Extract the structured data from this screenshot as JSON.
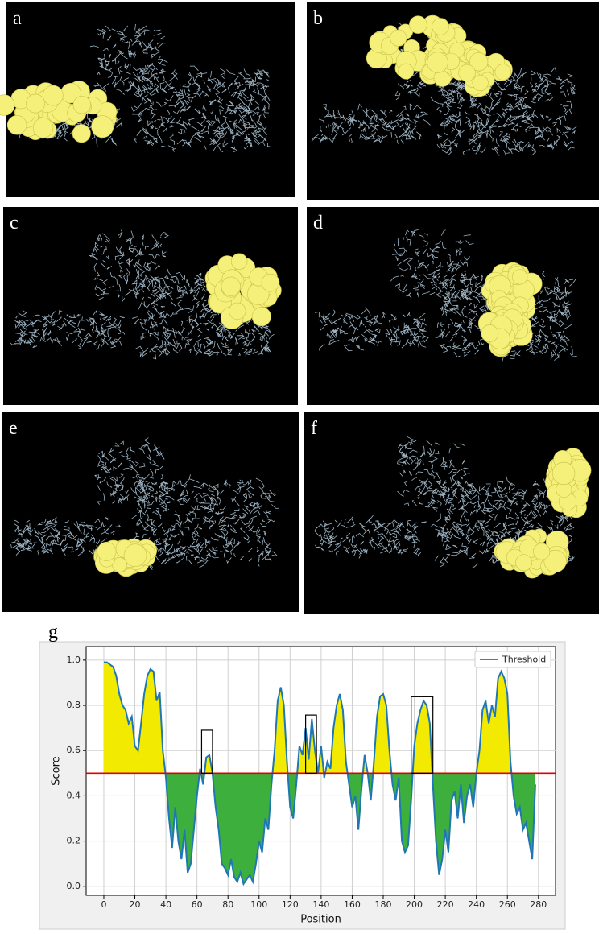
{
  "panels": [
    "a",
    "b",
    "c",
    "d",
    "e",
    "f"
  ],
  "chart_label": "g",
  "chart_data": {
    "type": "line",
    "xlabel": "Position",
    "ylabel": "Score",
    "x": [
      0,
      2,
      4,
      6,
      8,
      10,
      12,
      14,
      16,
      18,
      20,
      22,
      24,
      26,
      28,
      30,
      32,
      34,
      36,
      38,
      40,
      42,
      44,
      46,
      48,
      50,
      52,
      54,
      56,
      58,
      60,
      62,
      64,
      66,
      68,
      70,
      72,
      74,
      76,
      78,
      80,
      82,
      84,
      86,
      88,
      90,
      92,
      94,
      96,
      98,
      100,
      102,
      104,
      106,
      108,
      110,
      112,
      114,
      116,
      118,
      120,
      122,
      124,
      126,
      128,
      130,
      132,
      134,
      136,
      138,
      140,
      142,
      144,
      146,
      148,
      150,
      152,
      154,
      156,
      158,
      160,
      162,
      164,
      166,
      168,
      170,
      172,
      174,
      176,
      178,
      180,
      182,
      184,
      186,
      188,
      190,
      192,
      194,
      196,
      198,
      200,
      202,
      204,
      206,
      208,
      210,
      212,
      214,
      216,
      218,
      220,
      222,
      224,
      226,
      228,
      230,
      232,
      234,
      236,
      238,
      240,
      242,
      244,
      246,
      248,
      250,
      252,
      254,
      256,
      258,
      260,
      262,
      264,
      266,
      268,
      270,
      272,
      274,
      276,
      278
    ],
    "series": [
      {
        "name": "Score",
        "color": "#1f77b4",
        "values": [
          0.99,
          0.99,
          0.98,
          0.97,
          0.93,
          0.85,
          0.8,
          0.78,
          0.72,
          0.75,
          0.62,
          0.6,
          0.72,
          0.85,
          0.93,
          0.96,
          0.95,
          0.82,
          0.86,
          0.6,
          0.48,
          0.3,
          0.17,
          0.35,
          0.2,
          0.12,
          0.25,
          0.06,
          0.1,
          0.25,
          0.4,
          0.52,
          0.45,
          0.57,
          0.58,
          0.5,
          0.35,
          0.25,
          0.1,
          0.08,
          0.05,
          0.12,
          0.04,
          0.02,
          0.06,
          0.01,
          0.03,
          0.05,
          0.02,
          0.1,
          0.2,
          0.15,
          0.3,
          0.25,
          0.45,
          0.6,
          0.82,
          0.88,
          0.8,
          0.55,
          0.35,
          0.3,
          0.45,
          0.62,
          0.58,
          0.7,
          0.56,
          0.74,
          0.6,
          0.5,
          0.62,
          0.48,
          0.55,
          0.52,
          0.7,
          0.8,
          0.85,
          0.78,
          0.55,
          0.45,
          0.35,
          0.4,
          0.25,
          0.43,
          0.58,
          0.5,
          0.38,
          0.55,
          0.75,
          0.84,
          0.85,
          0.8,
          0.6,
          0.45,
          0.38,
          0.48,
          0.2,
          0.15,
          0.18,
          0.38,
          0.62,
          0.72,
          0.78,
          0.82,
          0.8,
          0.72,
          0.45,
          0.2,
          0.05,
          0.12,
          0.25,
          0.15,
          0.38,
          0.42,
          0.3,
          0.45,
          0.28,
          0.4,
          0.45,
          0.35,
          0.5,
          0.6,
          0.78,
          0.82,
          0.72,
          0.8,
          0.75,
          0.92,
          0.95,
          0.92,
          0.85,
          0.55,
          0.4,
          0.32,
          0.35,
          0.25,
          0.28,
          0.2,
          0.12,
          0.45
        ]
      }
    ],
    "threshold": {
      "name": "Threshold",
      "value": 0.5,
      "color": "#e00000"
    },
    "fill_above": "#f2ea00",
    "fill_below": "#3caf3c",
    "boxes": [
      {
        "x": [
          63,
          70
        ],
        "y": [
          0.5,
          0.69
        ]
      },
      {
        "x": [
          130,
          137
        ],
        "y": [
          0.5,
          0.757
        ]
      },
      {
        "x": [
          198,
          212
        ],
        "y": [
          0.5,
          0.838
        ]
      }
    ],
    "xlim": [
      -11.4,
      291
    ],
    "ylim": [
      -0.04,
      1.06
    ],
    "xticks": [
      0,
      20,
      40,
      60,
      80,
      100,
      120,
      140,
      160,
      180,
      200,
      220,
      240,
      260,
      280
    ],
    "yticks": [
      {
        "value": 0,
        "label": "0.0"
      },
      0.2,
      0.4,
      0.6,
      0.8,
      {
        "value": 1,
        "label": "1.0"
      }
    ],
    "grid": true,
    "legend": "upper right"
  }
}
